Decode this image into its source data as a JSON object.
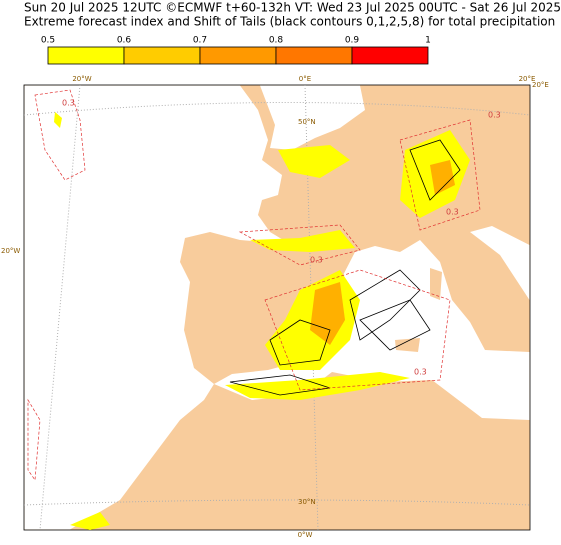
{
  "header": {
    "line1": "Sun 20 Jul 2025 12UTC ©ECMWF t+60-132h  VT: Wed 23 Jul 2025 00UTC - Sat 26 Jul 2025 00UTC",
    "line2": "Extreme forecast index and Shift of Tails (black contours 0,1,2,5,8) for total precipitation"
  },
  "colorbar": {
    "ticks": [
      0.5,
      0.6,
      0.7,
      0.8,
      0.9,
      1
    ],
    "colors": [
      "#ffff00",
      "#ffcc00",
      "#ff9900",
      "#ff7700",
      "#ff0000"
    ]
  },
  "graticule": {
    "top_left": "20°W",
    "top_mid": "0°E",
    "top_right": "20°E",
    "right": "20°E",
    "left": "20°W",
    "lat50": "50°N",
    "lat30": "30°N",
    "bottom": "0°W"
  },
  "contour_labels": [
    "0.3",
    "0.3",
    "0.3",
    "0.3",
    "0.3"
  ]
}
